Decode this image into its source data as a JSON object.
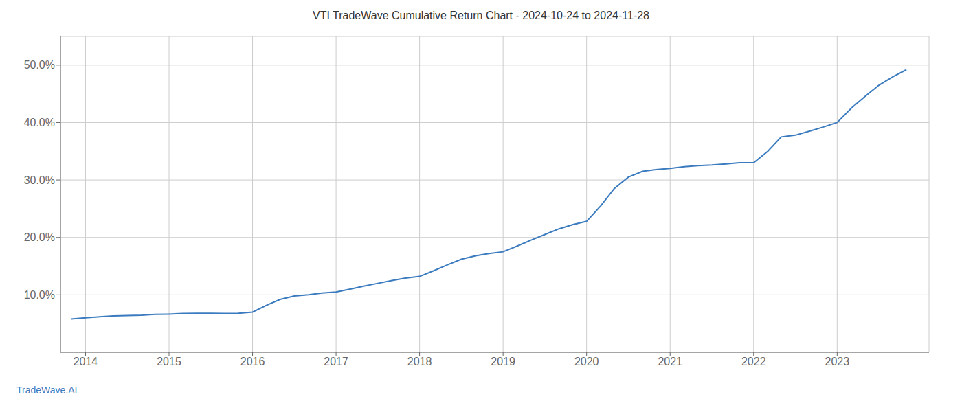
{
  "chart_data": {
    "type": "line",
    "title": "VTI TradeWave Cumulative Return Chart - 2024-10-24 to 2024-11-28",
    "annotations": [
      "TradeWave.AI"
    ],
    "color": "#3a7abf",
    "grid": true,
    "x": [
      2013.83,
      2014.0,
      2014.17,
      2014.33,
      2014.5,
      2014.67,
      2014.83,
      2015.0,
      2015.17,
      2015.33,
      2015.5,
      2015.67,
      2015.83,
      2016.0,
      2016.17,
      2016.33,
      2016.5,
      2016.67,
      2016.83,
      2017.0,
      2017.17,
      2017.33,
      2017.5,
      2017.67,
      2017.83,
      2018.0,
      2018.17,
      2018.33,
      2018.5,
      2018.67,
      2018.83,
      2019.0,
      2019.17,
      2019.33,
      2019.5,
      2019.67,
      2019.83,
      2020.0,
      2020.17,
      2020.33,
      2020.5,
      2020.67,
      2020.83,
      2021.0,
      2021.17,
      2021.33,
      2021.5,
      2021.67,
      2021.83,
      2022.0,
      2022.17,
      2022.33,
      2022.5,
      2022.67,
      2022.83,
      2023.0,
      2023.17,
      2023.33,
      2023.5,
      2023.67,
      2023.83
    ],
    "values": [
      5.8,
      6.0,
      6.2,
      6.35,
      6.4,
      6.45,
      6.6,
      6.65,
      6.75,
      6.8,
      6.8,
      6.75,
      6.8,
      7.0,
      8.2,
      9.2,
      9.8,
      10.0,
      10.3,
      10.5,
      11.0,
      11.5,
      12.0,
      12.5,
      12.9,
      13.2,
      14.2,
      15.2,
      16.2,
      16.8,
      17.2,
      17.5,
      18.5,
      19.5,
      20.5,
      21.5,
      22.2,
      22.8,
      25.5,
      28.5,
      30.5,
      31.5,
      31.8,
      32.0,
      32.3,
      32.5,
      32.6,
      32.8,
      33.0,
      33.0,
      35.0,
      37.5,
      37.8,
      38.5,
      39.2,
      40.0,
      42.5,
      44.5,
      46.5,
      48.0,
      49.2
    ],
    "xlim": [
      2013.7,
      2024.1
    ],
    "xticks": [
      2014,
      2015,
      2016,
      2017,
      2018,
      2019,
      2020,
      2021,
      2022,
      2023
    ],
    "ylim": [
      0,
      55
    ],
    "yticks": [
      {
        "value": 10.0,
        "label": "10.0%"
      },
      {
        "value": 20.0,
        "label": "20.0%"
      },
      {
        "value": 30.0,
        "label": "30.0%"
      },
      {
        "value": 40.0,
        "label": "40.0%"
      },
      {
        "value": 50.0,
        "label": "50.0%"
      }
    ]
  }
}
